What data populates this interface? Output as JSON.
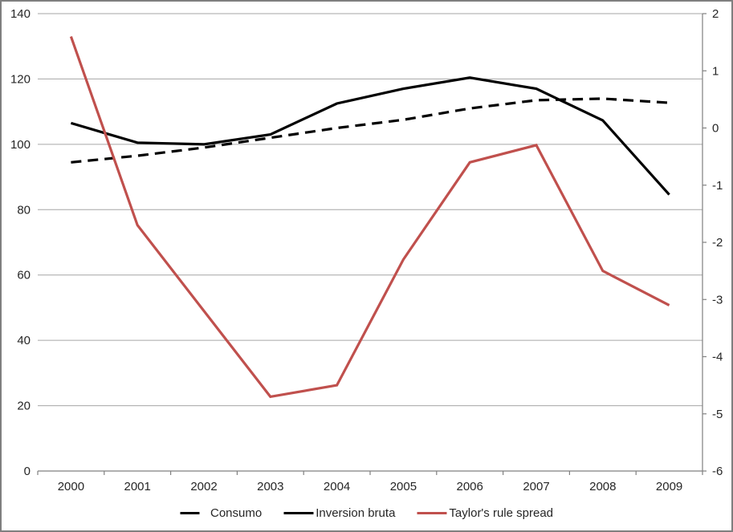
{
  "chart_data": {
    "type": "line",
    "title": "",
    "categories": [
      "2000",
      "2001",
      "2002",
      "2003",
      "2004",
      "2005",
      "2006",
      "2007",
      "2008",
      "2009"
    ],
    "series": [
      {
        "name": "Consumo",
        "axis": "left",
        "line_style": "dashed",
        "color": "#000000",
        "values": [
          94.5,
          96.5,
          99,
          102,
          105,
          107.5,
          111,
          113.5,
          114,
          112.7
        ]
      },
      {
        "name": "Inversion bruta",
        "axis": "left",
        "line_style": "solid",
        "color": "#000000",
        "values": [
          106.5,
          100.5,
          100,
          103,
          112.5,
          117,
          120.4,
          117,
          107.3,
          84.6
        ]
      },
      {
        "name": "Taylor's rule spread",
        "axis": "right",
        "line_style": "solid",
        "color": "#C0504D",
        "values": [
          1.6,
          -1.7,
          -3.2,
          -4.7,
          -4.5,
          -2.3,
          -0.6,
          -0.3,
          -2.5,
          -3.1
        ]
      }
    ],
    "left_axis": {
      "min": 0,
      "max": 140,
      "step": 20,
      "tick_labels": [
        "0",
        "20",
        "40",
        "60",
        "80",
        "100",
        "120",
        "140"
      ]
    },
    "right_axis": {
      "min": -6,
      "max": 2,
      "step": 1,
      "tick_labels_top_to_bottom": [
        "2",
        "1",
        "0",
        "-1",
        "-2",
        "-3",
        "-4",
        "-5",
        "-6"
      ]
    },
    "x_tick_labels": [
      "2000",
      "2001",
      "2002",
      "2003",
      "2004",
      "2005",
      "2006",
      "2007",
      "2008",
      "2009"
    ],
    "grid": true,
    "legend_position": "bottom",
    "colors": {
      "grid": "#A6A6A6",
      "axis_line": "#808080",
      "tick_text": "#262626",
      "background": "#FFFFFF",
      "frame_border": "#7F7F7F"
    }
  }
}
